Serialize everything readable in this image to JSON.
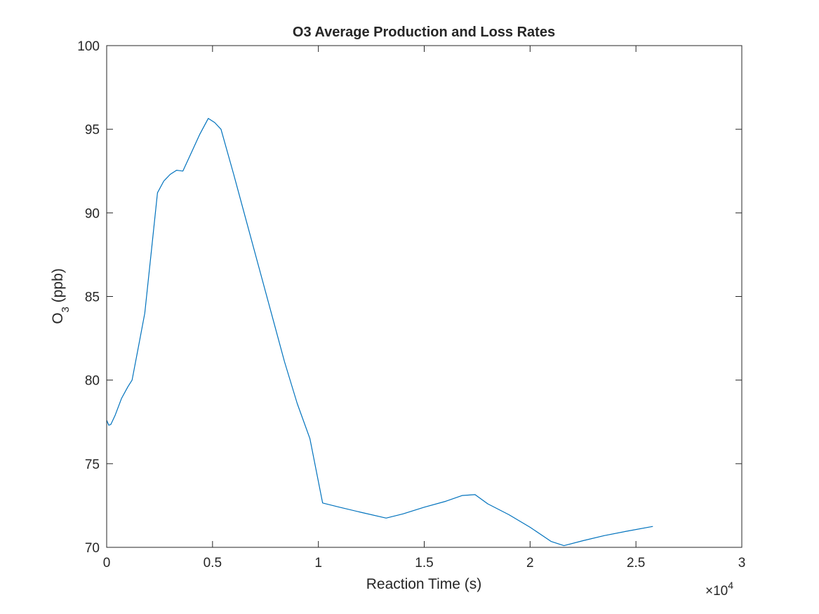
{
  "chart_data": {
    "type": "line",
    "title": "O3 Average Production and Loss Rates",
    "xlabel": "Reaction Time (s)",
    "ylabel_main": "O",
    "ylabel_sub": "3",
    "ylabel_rest": " (ppb)",
    "x_exponent_base": "×10",
    "x_exponent_power": "4",
    "xlim": [
      0,
      30000
    ],
    "ylim": [
      70,
      100
    ],
    "x_ticks": [
      0,
      5000,
      10000,
      15000,
      20000,
      25000,
      30000
    ],
    "x_tick_labels": [
      "0",
      "0.5",
      "1",
      "1.5",
      "2",
      "2.5",
      "3"
    ],
    "y_ticks": [
      70,
      75,
      80,
      85,
      90,
      95,
      100
    ],
    "y_tick_labels": [
      "70",
      "75",
      "80",
      "85",
      "90",
      "95",
      "100"
    ],
    "grid": false,
    "box": true,
    "series": [
      {
        "color": "#0072bd",
        "x": [
          0,
          100,
          200,
          400,
          700,
          1000,
          1200,
          1500,
          1800,
          2100,
          2400,
          2700,
          3000,
          3300,
          3600,
          4000,
          4400,
          4800,
          5100,
          5400,
          6000,
          6600,
          7200,
          7800,
          8400,
          9000,
          9600,
          10200,
          11000,
          12000,
          13200,
          14000,
          15000,
          16000,
          16800,
          17400,
          18000,
          19000,
          20000,
          21000,
          21600,
          22500,
          23500,
          24500,
          25800
        ],
        "y": [
          77.6,
          77.3,
          77.35,
          77.9,
          78.9,
          79.6,
          80.0,
          82.0,
          84.0,
          87.6,
          91.2,
          91.9,
          92.3,
          92.55,
          92.5,
          93.6,
          94.7,
          95.65,
          95.4,
          95.0,
          92.3,
          89.5,
          86.7,
          83.9,
          81.1,
          78.6,
          76.5,
          72.65,
          72.4,
          72.1,
          71.75,
          72.0,
          72.4,
          72.75,
          73.1,
          73.15,
          72.6,
          71.95,
          71.2,
          70.35,
          70.1,
          70.4,
          70.7,
          70.95,
          71.25
        ]
      }
    ]
  }
}
